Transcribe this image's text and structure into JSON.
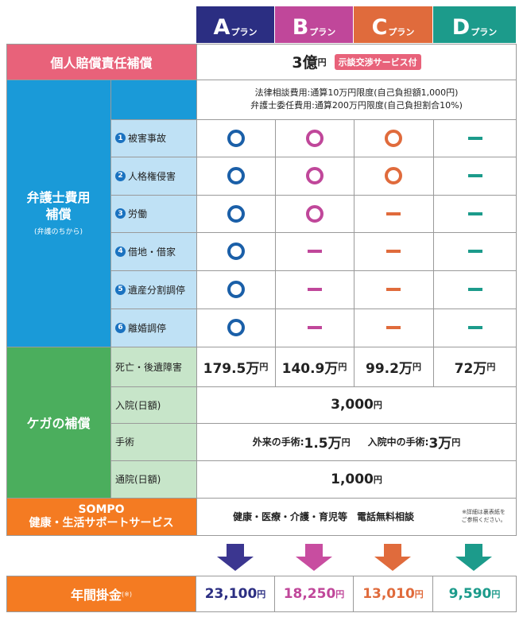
{
  "plans": [
    {
      "letter": "A",
      "suffix": "プラン",
      "color": "#2b2e82"
    },
    {
      "letter": "B",
      "suffix": "プラン",
      "color": "#c0479a"
    },
    {
      "letter": "C",
      "suffix": "プラン",
      "color": "#e06b3c"
    },
    {
      "letter": "D",
      "suffix": "プラン",
      "color": "#1c9b8b"
    }
  ],
  "liability": {
    "label": "個人賠償責任補償",
    "amount": "3億",
    "unit": "円",
    "badge": "示談交渉サービス付"
  },
  "lawyer": {
    "label_line1": "弁護士費用",
    "label_line2": "補償",
    "label_sub": "(弁護のちから)",
    "note1": "法律相談費用:通算10万円限度(自己負担額1,000円)",
    "note2": "弁護士委任費用:通算200万円限度(自己負担割合10%)",
    "items": [
      {
        "num": "1",
        "label": "被害事故"
      },
      {
        "num": "2",
        "label": "人格権侵害"
      },
      {
        "num": "3",
        "label": "労働"
      },
      {
        "num": "4",
        "label": "借地・借家"
      },
      {
        "num": "5",
        "label": "遺産分割調停"
      },
      {
        "num": "6",
        "label": "離婚調停"
      }
    ]
  },
  "injury": {
    "label": "ケガの補償",
    "death_label": "死亡・後遺障害",
    "death_values": [
      {
        "v": "179.5万",
        "u": "円"
      },
      {
        "v": "140.9万",
        "u": "円"
      },
      {
        "v": "99.2万",
        "u": "円"
      },
      {
        "v": "72万",
        "u": "円"
      }
    ],
    "hosp_label": "入院(日額)",
    "hosp_value": "3,000",
    "hosp_unit": "円",
    "surgery_label": "手術",
    "surgery_out_label": "外来の手術:",
    "surgery_out_value": "1.5万",
    "surgery_out_unit": "円",
    "surgery_in_label": "入院中の手術:",
    "surgery_in_value": "3万",
    "surgery_in_unit": "円",
    "visit_label": "通院(日額)",
    "visit_value": "1,000",
    "visit_unit": "円"
  },
  "sompo": {
    "label1": "SOMPO",
    "label2": "健康・生活サポートサービス",
    "text": "健康・医療・介護・育児等　電話無料相談",
    "note1": "※詳細は裏表紙を",
    "note2": "ご参照ください。"
  },
  "premium": {
    "label": "年間掛金",
    "mark": "(※)",
    "values": [
      {
        "v": "23,100",
        "u": "円"
      },
      {
        "v": "18,250",
        "u": "円"
      },
      {
        "v": "13,010",
        "u": "円"
      },
      {
        "v": "9,590",
        "u": "円"
      }
    ]
  },
  "colors": {
    "pink": "#e8627a",
    "blue": "#1a9ad8",
    "lightblue": "#bfe1f5",
    "green": "#4bae5d",
    "lightgreen": "#c7e5c9",
    "orange": "#f47b22",
    "orange_dark": "#e8552a"
  }
}
